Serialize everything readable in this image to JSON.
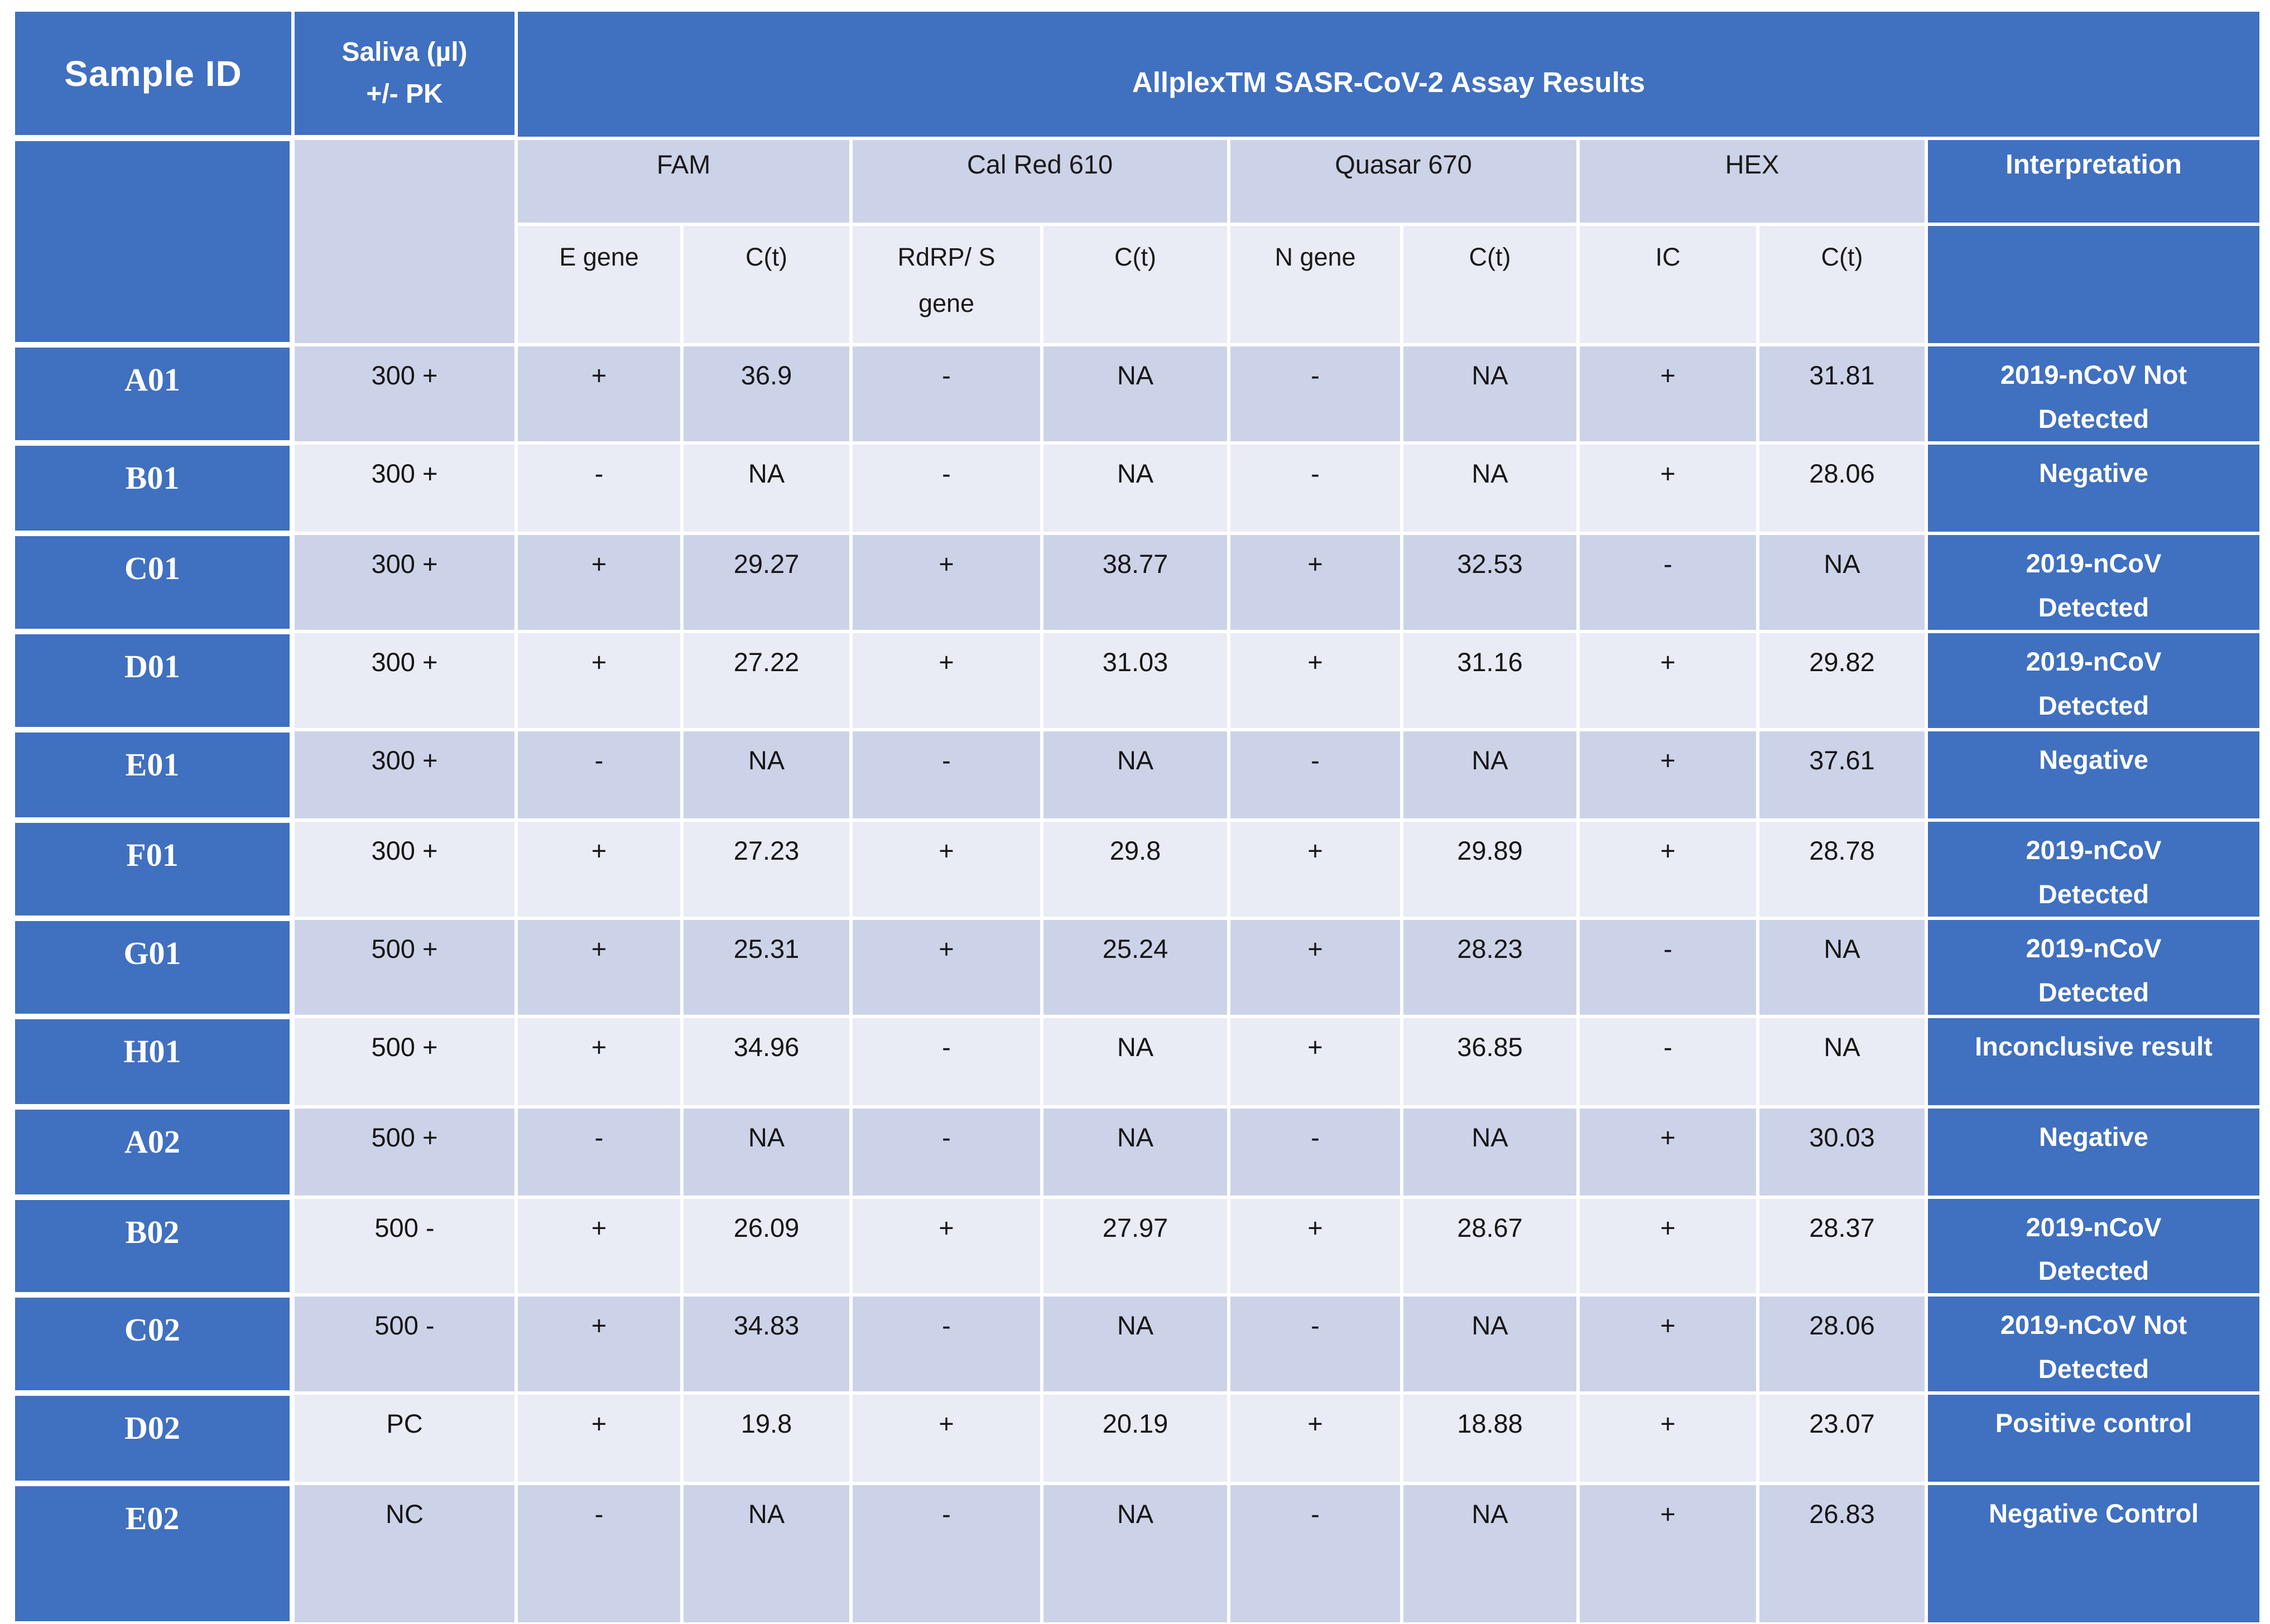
{
  "colors": {
    "header_blue": "#4070C0",
    "band_dark": "#CCD3E8",
    "band_light": "#E9EBF5",
    "separator": "#FFFFFF",
    "data_text": "#161616",
    "header_text": "#FFFFFF"
  },
  "chart_data": {
    "type": "table",
    "title": "AllplexTM SASR-CoV-2 Assay Results",
    "header": {
      "sample_id": "Sample ID",
      "saliva": "Saliva (µl)\n+/- PK",
      "assay_title": "AllplexTM SASR-CoV-2 Assay Results",
      "interpretation": "Interpretation",
      "channels": [
        "FAM",
        "Cal Red 610",
        "Quasar 670",
        "HEX"
      ],
      "subheaders": [
        "E gene",
        "C(t)",
        "RdRP/ S\ngene",
        "C(t)",
        "N gene",
        "C(t)",
        "IC",
        "C(t)"
      ]
    },
    "rows": [
      {
        "sample_id": "A01",
        "saliva": "300 +",
        "fam": "+",
        "fam_ct": "36.9",
        "rdrp": "-",
        "rdrp_ct": "NA",
        "n_gene": "-",
        "n_ct": "NA",
        "ic": "+",
        "ic_ct": "31.81",
        "interpretation": "2019-nCoV Not\nDetected"
      },
      {
        "sample_id": "B01",
        "saliva": "300 +",
        "fam": "-",
        "fam_ct": "NA",
        "rdrp": "-",
        "rdrp_ct": "NA",
        "n_gene": "-",
        "n_ct": "NA",
        "ic": "+",
        "ic_ct": "28.06",
        "interpretation": "Negative"
      },
      {
        "sample_id": "C01",
        "saliva": "300 +",
        "fam": "+",
        "fam_ct": "29.27",
        "rdrp": "+",
        "rdrp_ct": "38.77",
        "n_gene": "+",
        "n_ct": "32.53",
        "ic": "-",
        "ic_ct": "NA",
        "interpretation": "2019-nCoV\nDetected"
      },
      {
        "sample_id": "D01",
        "saliva": "300 +",
        "fam": "+",
        "fam_ct": "27.22",
        "rdrp": "+",
        "rdrp_ct": "31.03",
        "n_gene": "+",
        "n_ct": "31.16",
        "ic": "+",
        "ic_ct": "29.82",
        "interpretation": "2019-nCoV\nDetected"
      },
      {
        "sample_id": "E01",
        "saliva": "300 +",
        "fam": "-",
        "fam_ct": "NA",
        "rdrp": "-",
        "rdrp_ct": "NA",
        "n_gene": "-",
        "n_ct": "NA",
        "ic": "+",
        "ic_ct": "37.61",
        "interpretation": "Negative"
      },
      {
        "sample_id": "F01",
        "saliva": "300 +",
        "fam": "+",
        "fam_ct": "27.23",
        "rdrp": "+",
        "rdrp_ct": "29.8",
        "n_gene": "+",
        "n_ct": "29.89",
        "ic": "+",
        "ic_ct": "28.78",
        "interpretation": "2019-nCoV\nDetected"
      },
      {
        "sample_id": "G01",
        "saliva": "500 +",
        "fam": "+",
        "fam_ct": "25.31",
        "rdrp": "+",
        "rdrp_ct": "25.24",
        "n_gene": "+",
        "n_ct": "28.23",
        "ic": "-",
        "ic_ct": "NA",
        "interpretation": "2019-nCoV\nDetected"
      },
      {
        "sample_id": "H01",
        "saliva": "500 +",
        "fam": "+",
        "fam_ct": "34.96",
        "rdrp": "-",
        "rdrp_ct": "NA",
        "n_gene": "+",
        "n_ct": "36.85",
        "ic": "-",
        "ic_ct": "NA",
        "interpretation": "Inconclusive result"
      },
      {
        "sample_id": "A02",
        "saliva": "500 +",
        "fam": "-",
        "fam_ct": "NA",
        "rdrp": "-",
        "rdrp_ct": "NA",
        "n_gene": "-",
        "n_ct": "NA",
        "ic": "+",
        "ic_ct": "30.03",
        "interpretation": "Negative"
      },
      {
        "sample_id": "B02",
        "saliva": "500 -",
        "fam": "+",
        "fam_ct": "26.09",
        "rdrp": "+",
        "rdrp_ct": "27.97",
        "n_gene": "+",
        "n_ct": "28.67",
        "ic": "+",
        "ic_ct": "28.37",
        "interpretation": "2019-nCoV\nDetected"
      },
      {
        "sample_id": "C02",
        "saliva": "500 -",
        "fam": "+",
        "fam_ct": "34.83",
        "rdrp": "-",
        "rdrp_ct": "NA",
        "n_gene": "-",
        "n_ct": "NA",
        "ic": "+",
        "ic_ct": "28.06",
        "interpretation": "2019-nCoV Not\nDetected"
      },
      {
        "sample_id": "D02",
        "saliva": "PC",
        "fam": "+",
        "fam_ct": "19.8",
        "rdrp": "+",
        "rdrp_ct": "20.19",
        "n_gene": "+",
        "n_ct": "18.88",
        "ic": "+",
        "ic_ct": "23.07",
        "interpretation": "Positive control"
      },
      {
        "sample_id": "E02",
        "saliva": "NC",
        "fam": "-",
        "fam_ct": "NA",
        "rdrp": "-",
        "rdrp_ct": "NA",
        "n_gene": "-",
        "n_ct": "NA",
        "ic": "+",
        "ic_ct": "26.83",
        "interpretation": "Negative Control"
      }
    ]
  }
}
